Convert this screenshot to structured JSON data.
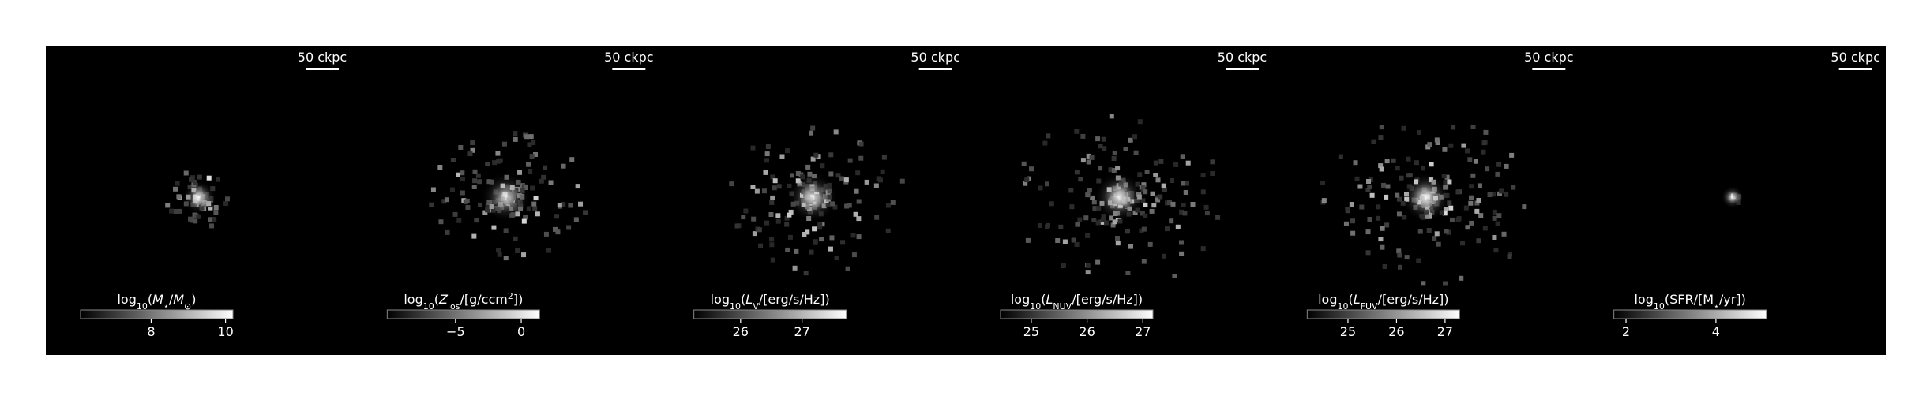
{
  "panels": [
    {
      "scale_bar": "50 ckpc",
      "glow": 0.9,
      "spread": 0.25,
      "colorbar": {
        "label": [
          {
            "text": "log"
          },
          {
            "text": "10",
            "style": "sub"
          },
          {
            "text": "("
          },
          {
            "text": "M",
            "style": "italic"
          },
          {
            "text": "⋆",
            "style": "sub"
          },
          {
            "text": "/"
          },
          {
            "text": "M",
            "style": "italic"
          },
          {
            "text": "⊙",
            "style": "sub"
          },
          {
            "text": ")"
          }
        ],
        "range": [
          6.1,
          10.2
        ],
        "ticks": [
          8,
          10
        ]
      }
    },
    {
      "scale_bar": "50 ckpc",
      "glow": 0.75,
      "spread": 0.6,
      "colorbar": {
        "label": [
          {
            "text": "log"
          },
          {
            "text": "10",
            "style": "sub"
          },
          {
            "text": "("
          },
          {
            "text": "Z",
            "style": "italic"
          },
          {
            "text": "los",
            "style": "sub"
          },
          {
            "text": "/[g/ccm"
          },
          {
            "text": "2",
            "style": "sup"
          },
          {
            "text": "])"
          }
        ],
        "range": [
          -10.2,
          1.4
        ],
        "ticks": [
          {
            "value": -5,
            "label": "−5"
          },
          0
        ]
      }
    },
    {
      "scale_bar": "50 ckpc",
      "glow": 0.85,
      "spread": 0.7,
      "colorbar": {
        "label": [
          {
            "text": "log"
          },
          {
            "text": "10",
            "style": "sub"
          },
          {
            "text": "("
          },
          {
            "text": "L",
            "style": "italic"
          },
          {
            "text": "V",
            "style": "sub"
          },
          {
            "text": "/[erg/s/Hz])"
          }
        ],
        "range": [
          25.24,
          27.72
        ],
        "ticks": [
          26,
          27
        ]
      }
    },
    {
      "scale_bar": "50 ckpc",
      "glow": 0.9,
      "spread": 0.8,
      "colorbar": {
        "label": [
          {
            "text": "log"
          },
          {
            "text": "10",
            "style": "sub"
          },
          {
            "text": "("
          },
          {
            "text": "L",
            "style": "italic"
          },
          {
            "text": "NUV",
            "style": "sub"
          },
          {
            "text": "/[erg/s/Hz])"
          }
        ],
        "range": [
          24.45,
          27.18
        ],
        "ticks": [
          25,
          26,
          27
        ]
      }
    },
    {
      "scale_bar": "50 ckpc",
      "glow": 0.9,
      "spread": 0.8,
      "colorbar": {
        "label": [
          {
            "text": "log"
          },
          {
            "text": "10",
            "style": "sub"
          },
          {
            "text": "("
          },
          {
            "text": "L",
            "style": "italic"
          },
          {
            "text": "FUV",
            "style": "sub"
          },
          {
            "text": "/[erg/s/Hz])"
          }
        ],
        "range": [
          24.16,
          27.3
        ],
        "ticks": [
          25,
          26,
          27
        ]
      }
    },
    {
      "scale_bar": "50 ckpc",
      "glow": 0.9,
      "spread": 0.02,
      "colorbar": {
        "label": [
          {
            "text": "log"
          },
          {
            "text": "10",
            "style": "sub"
          },
          {
            "text": "(SFR/[M"
          },
          {
            "text": "⋆",
            "style": "sub"
          },
          {
            "text": "/yr])"
          }
        ],
        "range": [
          1.73,
          5.12
        ],
        "ticks": [
          2,
          4
        ]
      }
    }
  ]
}
